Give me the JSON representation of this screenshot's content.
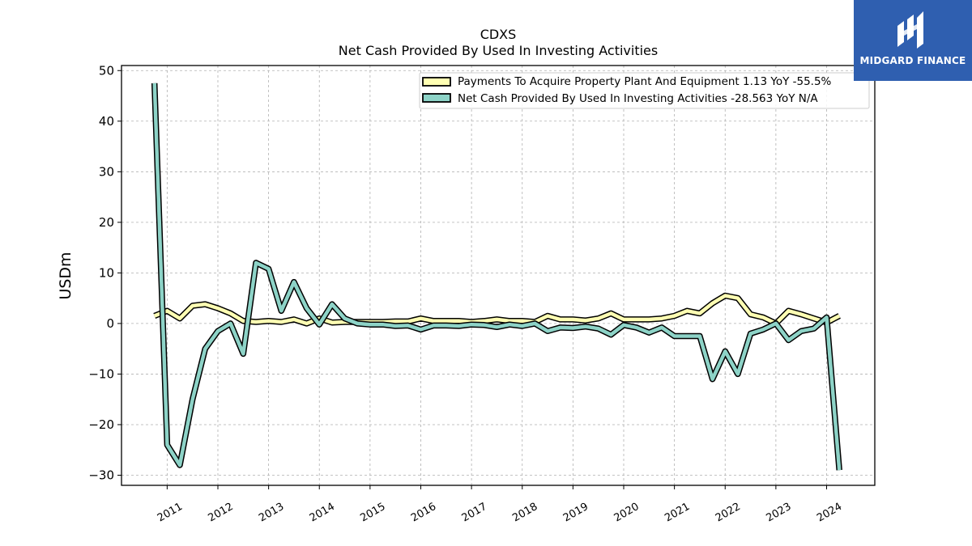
{
  "chart_data": {
    "type": "line",
    "title": "CDXS",
    "subtitle": "Net Cash Provided By Used In Investing Activities",
    "ylabel": "USDm",
    "xlabel": "",
    "ylim": [
      -32,
      51
    ],
    "xlim": [
      2010.1,
      2024.95
    ],
    "yticks": [
      50,
      40,
      30,
      20,
      10,
      0,
      -10,
      -20,
      -30
    ],
    "ytick_labels": [
      "50",
      "40",
      "30",
      "20",
      "10",
      "0",
      "−10",
      "−20",
      "−30"
    ],
    "xticks": [
      2011,
      2012,
      2013,
      2014,
      2015,
      2016,
      2017,
      2018,
      2019,
      2020,
      2021,
      2022,
      2023,
      2024
    ],
    "xtick_labels": [
      "2011",
      "2012",
      "2013",
      "2014",
      "2015",
      "2016",
      "2017",
      "2018",
      "2019",
      "2020",
      "2021",
      "2022",
      "2023",
      "2024"
    ],
    "grid": true,
    "legend_position": "top-right",
    "series": [
      {
        "name": "Payments To Acquire Property Plant And Equipment  1.13 YoY -55.5%",
        "color": "#ffffb3",
        "x": [
          2010.75,
          2011.0,
          2011.25,
          2011.5,
          2011.75,
          2012.0,
          2012.25,
          2012.5,
          2012.75,
          2013.0,
          2013.25,
          2013.5,
          2013.75,
          2014.0,
          2014.25,
          2014.5,
          2014.75,
          2015.0,
          2015.25,
          2015.5,
          2015.75,
          2016.0,
          2016.25,
          2016.5,
          2016.75,
          2017.0,
          2017.25,
          2017.5,
          2017.75,
          2018.0,
          2018.25,
          2018.5,
          2018.75,
          2019.0,
          2019.25,
          2019.5,
          2019.75,
          2020.0,
          2020.25,
          2020.5,
          2020.75,
          2021.0,
          2021.25,
          2021.5,
          2021.75,
          2022.0,
          2022.25,
          2022.5,
          2022.75,
          2023.0,
          2023.25,
          2023.5,
          2023.75,
          2024.0,
          2024.25
        ],
        "values": [
          1.5,
          2.5,
          1.0,
          3.5,
          3.8,
          3.0,
          2.0,
          0.5,
          0.3,
          0.5,
          0.3,
          0.8,
          0.0,
          1.0,
          0.2,
          0.3,
          0.3,
          0.3,
          0.3,
          0.4,
          0.4,
          1.0,
          0.5,
          0.5,
          0.5,
          0.3,
          0.5,
          0.8,
          0.5,
          0.5,
          0.3,
          1.5,
          0.8,
          0.8,
          0.6,
          1.0,
          2.0,
          0.8,
          0.8,
          0.8,
          1.0,
          1.5,
          2.5,
          2.0,
          4.0,
          5.5,
          5.0,
          1.8,
          1.2,
          0.0,
          2.5,
          1.8,
          1.0,
          0.2,
          1.5
        ]
      },
      {
        "name": "Net Cash Provided By Used In Investing Activities  -28.563 YoY N/A",
        "color": "#8dd3c7",
        "x": [
          2010.75,
          2011.0,
          2011.25,
          2011.5,
          2011.75,
          2012.0,
          2012.25,
          2012.5,
          2012.75,
          2013.0,
          2013.25,
          2013.5,
          2013.75,
          2014.0,
          2014.25,
          2014.5,
          2014.75,
          2015.0,
          2015.25,
          2015.5,
          2015.75,
          2016.0,
          2016.25,
          2016.5,
          2016.75,
          2017.0,
          2017.25,
          2017.5,
          2017.75,
          2018.0,
          2018.25,
          2018.5,
          2018.75,
          2019.0,
          2019.25,
          2019.5,
          2019.75,
          2020.0,
          2020.25,
          2020.5,
          2020.75,
          2021.0,
          2021.25,
          2021.5,
          2021.75,
          2022.0,
          2022.25,
          2022.5,
          2022.75,
          2023.0,
          2023.25,
          2023.5,
          2023.75,
          2024.0,
          2024.25
        ],
        "values": [
          47.5,
          -24.0,
          -28.0,
          -15.0,
          -5.0,
          -1.5,
          0.0,
          -6.0,
          12.0,
          10.8,
          2.5,
          8.2,
          3.0,
          -0.2,
          3.8,
          1.0,
          0.0,
          -0.2,
          -0.2,
          -0.5,
          -0.4,
          -1.2,
          -0.4,
          -0.4,
          -0.5,
          -0.2,
          -0.3,
          -0.7,
          -0.2,
          -0.5,
          0.0,
          -1.5,
          -0.8,
          -0.9,
          -0.6,
          -1.0,
          -2.2,
          -0.3,
          -0.8,
          -1.8,
          -0.8,
          -2.5,
          -2.5,
          -2.5,
          -11.0,
          -5.5,
          -10.0,
          -2.0,
          -1.2,
          0.0,
          -3.3,
          -1.5,
          -1.0,
          1.2,
          -29.0
        ]
      }
    ]
  },
  "logo": {
    "text": "MIDGARD FINANCE",
    "background": "#2f5fb0"
  }
}
